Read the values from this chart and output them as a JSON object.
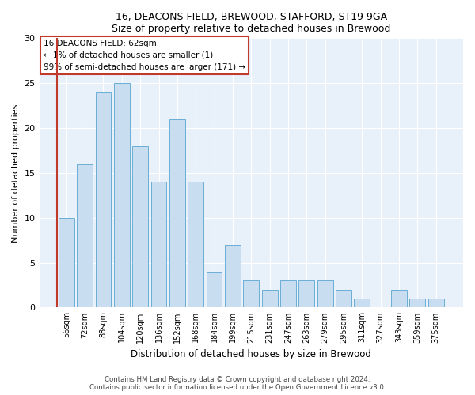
{
  "title1": "16, DEACONS FIELD, BREWOOD, STAFFORD, ST19 9GA",
  "title2": "Size of property relative to detached houses in Brewood",
  "xlabel": "Distribution of detached houses by size in Brewood",
  "ylabel": "Number of detached properties",
  "footnote": "Contains HM Land Registry data © Crown copyright and database right 2024.\nContains public sector information licensed under the Open Government Licence v3.0.",
  "categories": [
    "56sqm",
    "72sqm",
    "88sqm",
    "104sqm",
    "120sqm",
    "136sqm",
    "152sqm",
    "168sqm",
    "184sqm",
    "199sqm",
    "215sqm",
    "231sqm",
    "247sqm",
    "263sqm",
    "279sqm",
    "295sqm",
    "311sqm",
    "327sqm",
    "343sqm",
    "359sqm",
    "375sqm"
  ],
  "values": [
    10,
    16,
    24,
    25,
    18,
    14,
    21,
    14,
    4,
    7,
    3,
    2,
    3,
    3,
    3,
    2,
    1,
    0,
    2,
    1,
    1
  ],
  "bar_color": "#c9ddf0",
  "bar_edge_color": "#6aaed6",
  "annotation_text": "16 DEACONS FIELD: 62sqm\n← 1% of detached houses are smaller (1)\n99% of semi-detached houses are larger (171) →",
  "annotation_box_edge_color": "#c0392b",
  "red_line_color": "#c0392b",
  "ylim": [
    0,
    30
  ],
  "yticks": [
    0,
    5,
    10,
    15,
    20,
    25,
    30
  ],
  "bg_color": "#e8f1fa",
  "grid_color": "#ffffff",
  "footnote_color": "#444444"
}
